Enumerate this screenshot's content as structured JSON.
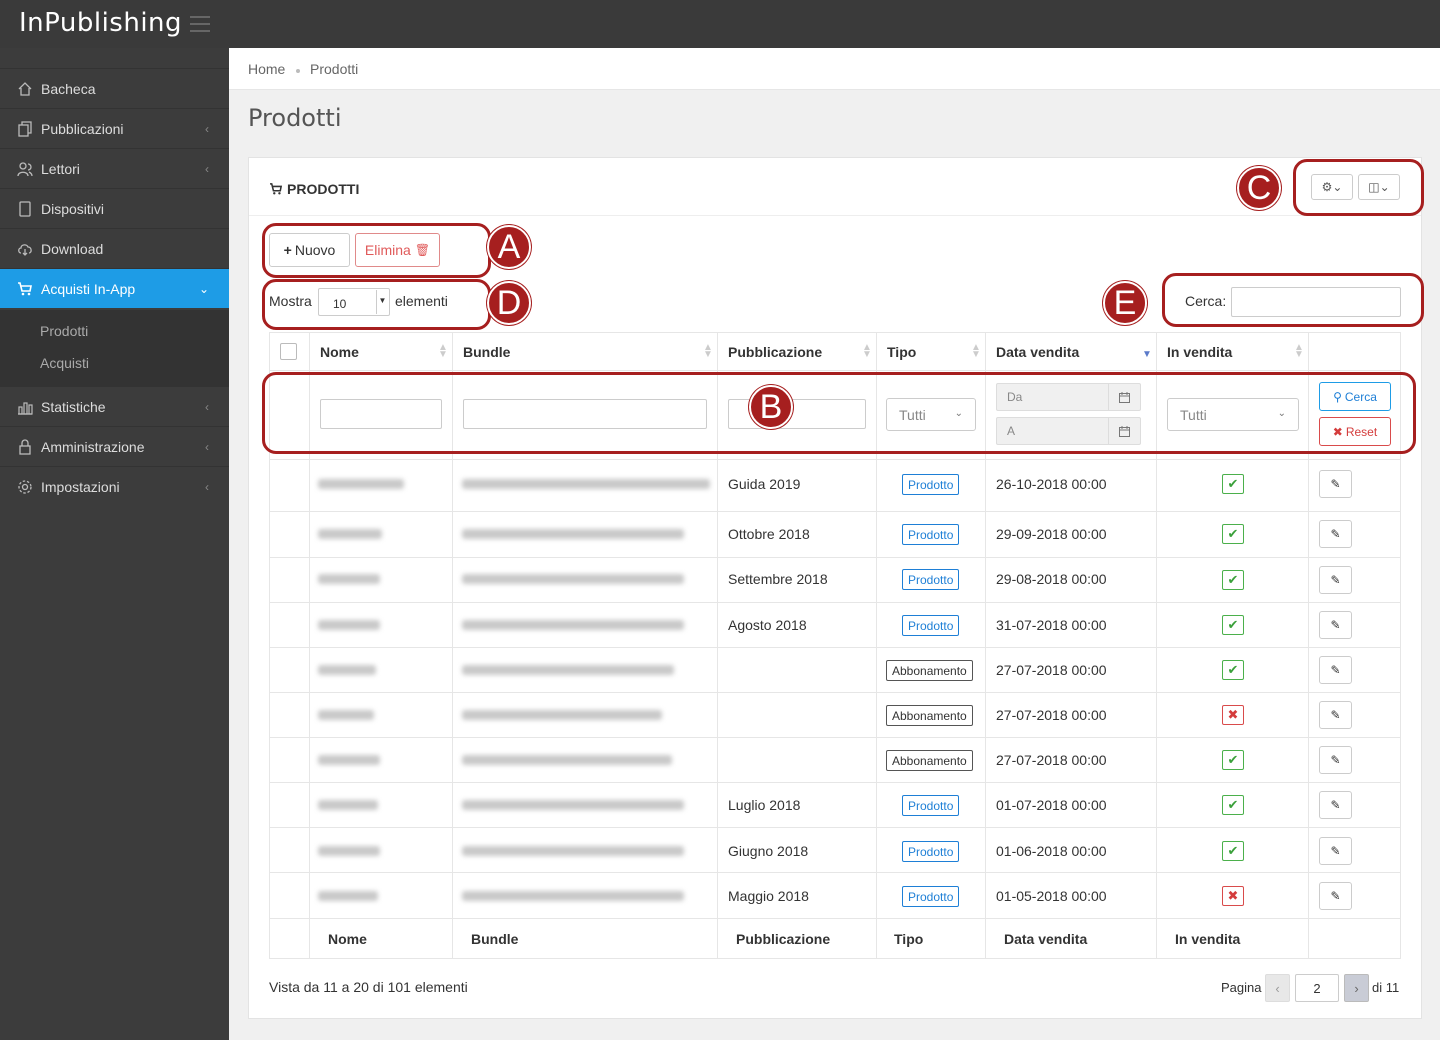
{
  "app": {
    "brand": "InPublishing"
  },
  "sidebar": {
    "items": [
      {
        "label": "Bacheca",
        "icon": "home-icon"
      },
      {
        "label": "Pubblicazioni",
        "icon": "copy-icon"
      },
      {
        "label": "Lettori",
        "icon": "users-icon"
      },
      {
        "label": "Dispositivi",
        "icon": "tablet-icon"
      },
      {
        "label": "Download",
        "icon": "cloud-download-icon"
      },
      {
        "label": "Acquisti In-App",
        "icon": "cart-icon"
      },
      {
        "label": "Statistiche",
        "icon": "bar-chart-icon"
      },
      {
        "label": "Amministrazione",
        "icon": "lock-icon"
      },
      {
        "label": "Impostazioni",
        "icon": "gear-icon"
      }
    ],
    "subitems": [
      "Prodotti",
      "Acquisti"
    ]
  },
  "breadcrumb": {
    "home": "Home",
    "current": "Prodotti"
  },
  "page": {
    "title": "Prodotti"
  },
  "panel": {
    "title": "PRODOTTI",
    "new_label": "Nuovo",
    "delete_label": "Elimina",
    "show_prefix": "Mostra",
    "show_value": "10",
    "show_suffix": "elementi",
    "search_label": "Cerca:"
  },
  "annotations": [
    "A",
    "B",
    "C",
    "D",
    "E"
  ],
  "table": {
    "headers": [
      "Nome",
      "Bundle",
      "Pubblicazione",
      "Tipo",
      "Data vendita",
      "In vendita"
    ],
    "filters": {
      "tipo": "Tutti",
      "date_from": "Da",
      "date_to": "A",
      "in_vendita": "Tutti",
      "search_btn": "Cerca",
      "reset_btn": "Reset"
    },
    "rows": [
      {
        "pubblicazione": "Guida  2019",
        "tipo": "Prodotto",
        "data": "26-10-2018 00:00",
        "in_vendita": true
      },
      {
        "pubblicazione": "Ottobre 2018",
        "tipo": "Prodotto",
        "data": "29-09-2018 00:00",
        "in_vendita": true
      },
      {
        "pubblicazione": "Settembre 2018",
        "tipo": "Prodotto",
        "data": "29-08-2018 00:00",
        "in_vendita": true
      },
      {
        "pubblicazione": "Agosto 2018",
        "tipo": "Prodotto",
        "data": "31-07-2018 00:00",
        "in_vendita": true
      },
      {
        "pubblicazione": "",
        "tipo": "Abbonamento",
        "data": "27-07-2018 00:00",
        "in_vendita": true
      },
      {
        "pubblicazione": "",
        "tipo": "Abbonamento",
        "data": "27-07-2018 00:00",
        "in_vendita": false
      },
      {
        "pubblicazione": "",
        "tipo": "Abbonamento",
        "data": "27-07-2018 00:00",
        "in_vendita": true
      },
      {
        "pubblicazione": "Luglio 2018",
        "tipo": "Prodotto",
        "data": "01-07-2018 00:00",
        "in_vendita": true
      },
      {
        "pubblicazione": "Giugno 2018",
        "tipo": "Prodotto",
        "data": "01-06-2018 00:00",
        "in_vendita": true
      },
      {
        "pubblicazione": "Maggio 2018",
        "tipo": "Prodotto",
        "data": "01-05-2018 00:00",
        "in_vendita": false
      }
    ],
    "footer": [
      "Nome",
      "Bundle",
      "Pubblicazione",
      "Tipo",
      "Data vendita",
      "In vendita"
    ]
  },
  "pagination": {
    "info": "Vista da 11 a 20 di 101 elementi",
    "page_label": "Pagina",
    "current": "2",
    "total": "di 11"
  },
  "colors": {
    "accent": "#1e9ce6",
    "annotation": "#a61f1f",
    "success": "#4bb04b",
    "danger": "#d94b4b"
  }
}
